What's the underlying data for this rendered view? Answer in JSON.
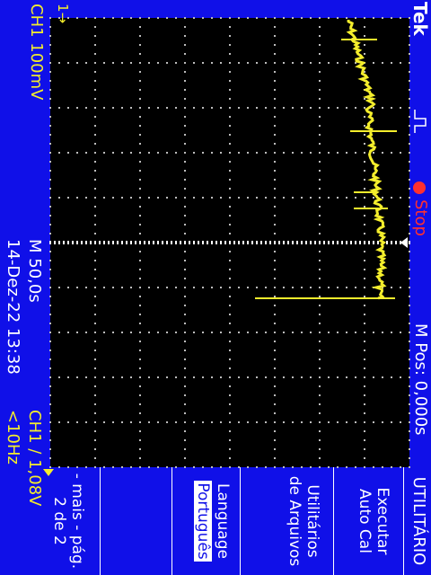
{
  "brand": "Tek",
  "trigger_status": "Stop",
  "trigger_level_marker": "1→",
  "ch1_scale": "CH1 100mV",
  "timebase": "M 50,0s",
  "date_time": "14-Dez-22 13:38",
  "horizontal_position": "M Pos: 0,000s",
  "trigger_readout": "CH1 ∕ 1,08V",
  "frequency_readout": "<10Hz",
  "menu": {
    "title": "UTILITÁRIO",
    "items": [
      {
        "line1": "Executar",
        "line2": "Auto Cal"
      },
      {
        "line1": "Utilitários",
        "line2": "de Arquivos"
      },
      {
        "line1": "Language",
        "line2": "Português"
      },
      {
        "line1": "",
        "line2": ""
      },
      {
        "line1": "- mais - pág.",
        "line2": "2 de 2"
      }
    ]
  },
  "colors": {
    "background": "#1010e8",
    "grid_area": "#000000",
    "trace": "#f4ee2c",
    "text": "#ffffff",
    "stop_indicator": "#ff3030"
  },
  "icons": [
    "trigger-edge-icon",
    "stop-dot-icon",
    "trigger-position-arrow-icon",
    "ch1-ground-marker-icon"
  ]
}
